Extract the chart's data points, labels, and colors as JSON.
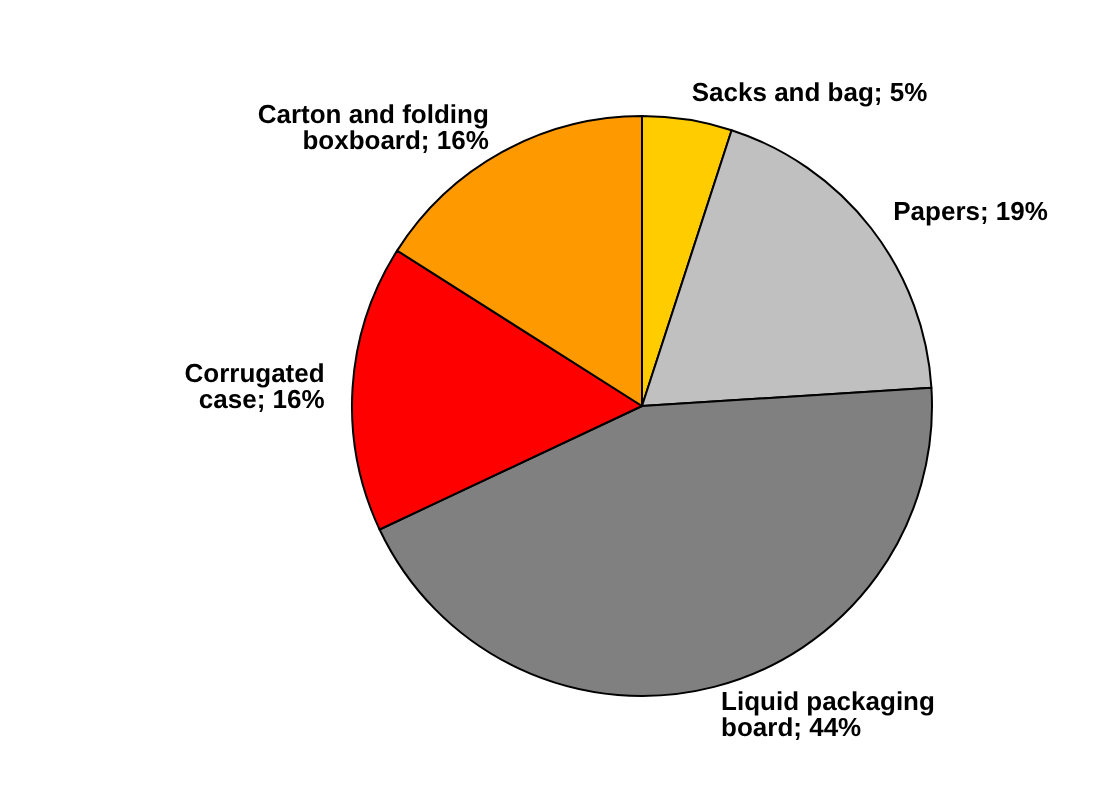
{
  "chart_data": {
    "type": "pie",
    "categories": [
      "Sacks and bag",
      "Papers",
      "Liquid packaging board",
      "Corrugated case",
      "Carton and folding boxboard"
    ],
    "values": [
      5,
      19,
      44,
      16,
      16
    ],
    "value_labels": [
      "5%",
      "19%",
      "44%",
      "16%",
      "16%"
    ],
    "colors": [
      "#ffcc00",
      "#c0c0c0",
      "#808080",
      "#ff0000",
      "#ff9900"
    ],
    "legend": false
  }
}
